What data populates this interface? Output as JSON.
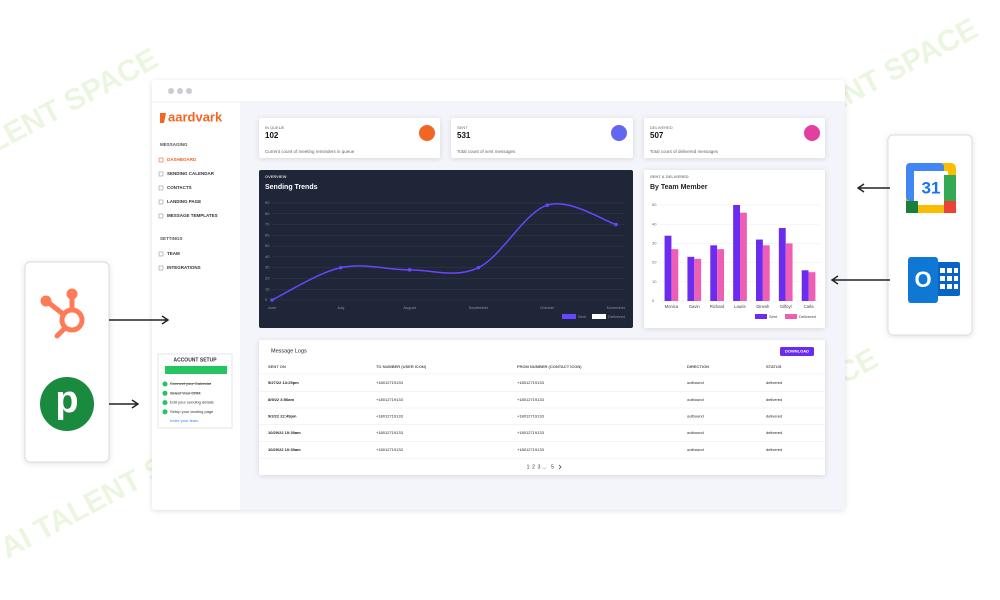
{
  "watermark": "AI TALENT SPACE",
  "sidebar": {
    "logo": "aardvark",
    "sections": [
      {
        "title": "MESSAGING",
        "items": [
          "DASHBOARD",
          "SENDING CALENDAR",
          "CONTACTS",
          "LANDING PAGE",
          "MESSAGE TEMPLATES"
        ]
      },
      {
        "title": "SETTINGS",
        "items": [
          "TEAM",
          "INTEGRATIONS"
        ]
      }
    ]
  },
  "account_setup": {
    "title": "ACCOUNT SETUP",
    "steps": [
      "Connect your Calendar",
      "Select Your CRM",
      "Edit your sending details",
      "Setup your landing page"
    ],
    "link": "Invite your team"
  },
  "stats": [
    {
      "label": "IN QUEUE",
      "value": "102",
      "description": "Current count of meeting reminders in queue",
      "color": "#f26522"
    },
    {
      "label": "SENT",
      "value": "531",
      "description": "Total count of sent messages",
      "color": "#6366f1"
    },
    {
      "label": "DELIVERED",
      "value": "507",
      "description": "Total count of delivered messages",
      "color": "#e23fa0"
    }
  ],
  "chart_data": [
    {
      "type": "line",
      "label": "OVERVIEW",
      "title": "Sending Trends",
      "categories": [
        "June",
        "July",
        "August",
        "September",
        "October",
        "November"
      ],
      "series": [
        {
          "name": "Sent",
          "color": "#6a45ff",
          "values": [
            0,
            30,
            28,
            30,
            88,
            70
          ]
        }
      ],
      "extra_legend": {
        "name": "Delivered",
        "color": "#ffffff"
      },
      "ylim": [
        0,
        90
      ],
      "yticks": [
        0,
        10,
        20,
        30,
        40,
        50,
        60,
        70,
        80,
        90
      ],
      "grid": true
    },
    {
      "type": "bar",
      "label": "SENT & DELIVERED",
      "title": "By Team Member",
      "categories": [
        "Monica",
        "Gavin",
        "Richard",
        "Laurie",
        "Dinesh",
        "Gilfoyl",
        "Carla"
      ],
      "series": [
        {
          "name": "Sent",
          "color": "#6a2cf0",
          "values": [
            34,
            23,
            29,
            50,
            32,
            38,
            16
          ]
        },
        {
          "name": "Delivered",
          "color": "#ec5fb4",
          "values": [
            27,
            22,
            27,
            46,
            29,
            30,
            15
          ]
        }
      ],
      "ylim": [
        0,
        50
      ],
      "yticks": [
        0,
        10,
        20,
        30,
        40,
        50
      ],
      "grid": true
    }
  ],
  "message_logs": {
    "title": "Message Logs",
    "button": "DOWNLOAD",
    "columns": [
      "SENT ON",
      "TO NUMBER (USER ICON)",
      "FROM NUMBER (CONTACT ICON)",
      "DIRECTION",
      "STATUS"
    ],
    "rows": [
      [
        "5/27/22 13:25pm",
        "+18012719133",
        "+18012719133",
        "outbound",
        "delivered"
      ],
      [
        "8/9/22 3:56am",
        "+18012719133",
        "+18012719133",
        "outbound",
        "delivered"
      ],
      [
        "9/2/22 22:49pm",
        "+18012719133",
        "+18012719133",
        "outbound",
        "delivered"
      ],
      [
        "10/29/22 10:30am",
        "+18012719133",
        "+18012719133",
        "outbound",
        "delivered"
      ],
      [
        "10/29/22 10:30am",
        "+18012719133",
        "+18012719133",
        "outbound",
        "delivered"
      ]
    ],
    "pagination": [
      "1",
      "2",
      "3",
      "...",
      "5"
    ]
  },
  "integrations": {
    "pipedrive": "p",
    "google_calendar": "31",
    "outlook": "O"
  }
}
